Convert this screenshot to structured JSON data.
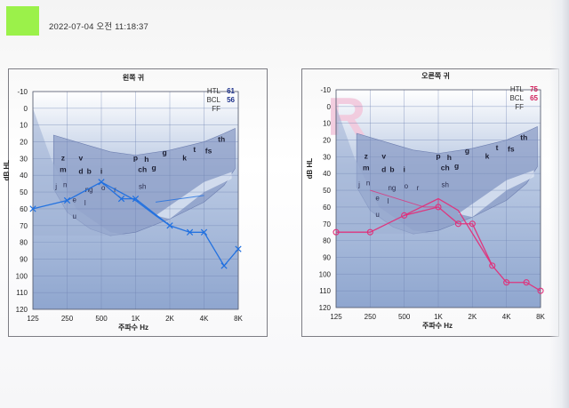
{
  "header": {
    "timestamp": "2022-07-04 오전 11:18:37"
  },
  "chart_data": [
    {
      "type": "line",
      "title": "왼쪽 귀",
      "xlabel": "주파수 Hz",
      "ylabel": "dB HL",
      "x_ticks": [
        "125",
        "250",
        "500",
        "1K",
        "2K",
        "4K",
        "8K"
      ],
      "y_ticks": [
        "-10",
        "0",
        "10",
        "20",
        "30",
        "40",
        "50",
        "60",
        "70",
        "80",
        "90",
        "100",
        "110",
        "120"
      ],
      "ylim": [
        -10,
        120
      ],
      "legend": {
        "htl_label": "HTL",
        "htl_value": "61",
        "bcl_label": "BCL",
        "bcl_value": "56",
        "ff_label": "FF"
      },
      "accent": "#1e6fe0",
      "watermark": "L",
      "series": [
        {
          "marker": "x",
          "points": [
            [
              125,
              60
            ],
            [
              250,
              55
            ],
            [
              500,
              44
            ],
            [
              750,
              54
            ],
            [
              1000,
              54
            ],
            [
              2000,
              70
            ],
            [
              3000,
              74
            ],
            [
              4000,
              74
            ],
            [
              6000,
              94
            ],
            [
              8000,
              84
            ]
          ]
        },
        {
          "marker": "line",
          "points": [
            [
              500,
              44
            ],
            [
              1000,
              55
            ],
            [
              1500,
              64
            ],
            [
              2000,
              70
            ]
          ]
        },
        {
          "marker": "bracket",
          "points": [
            [
              1500,
              56
            ],
            [
              4000,
              52
            ]
          ]
        }
      ],
      "speech_sounds": [
        {
          "t": "p",
          "f": 1000,
          "db": 31
        },
        {
          "t": "h",
          "f": 1250,
          "db": 32
        },
        {
          "t": "g",
          "f": 1800,
          "db": 28
        },
        {
          "t": "k",
          "f": 2700,
          "db": 31
        },
        {
          "t": "t",
          "f": 3300,
          "db": 26
        },
        {
          "t": "f",
          "f": 4200,
          "db": 27
        },
        {
          "t": "s",
          "f": 4500,
          "db": 27
        },
        {
          "t": "th",
          "f": 5700,
          "db": 20
        },
        {
          "t": "z",
          "f": 230,
          "db": 31
        },
        {
          "t": "v",
          "f": 330,
          "db": 31
        },
        {
          "t": "m",
          "f": 230,
          "db": 38
        },
        {
          "t": "d",
          "f": 330,
          "db": 39
        },
        {
          "t": "b",
          "f": 390,
          "db": 39
        },
        {
          "t": "i",
          "f": 500,
          "db": 39
        },
        {
          "t": "ch",
          "f": 1150,
          "db": 38
        },
        {
          "t": "g",
          "f": 1450,
          "db": 37
        },
        {
          "t": "j",
          "f": 200,
          "db": 48
        },
        {
          "t": "n",
          "f": 240,
          "db": 47
        },
        {
          "t": "ng",
          "f": 390,
          "db": 50
        },
        {
          "t": "o",
          "f": 520,
          "db": 49
        },
        {
          "t": "r",
          "f": 660,
          "db": 50
        },
        {
          "t": "sh",
          "f": 1150,
          "db": 48
        },
        {
          "t": "e",
          "f": 290,
          "db": 56
        },
        {
          "t": "l",
          "f": 360,
          "db": 58
        },
        {
          "t": "u",
          "f": 290,
          "db": 66
        }
      ]
    },
    {
      "type": "line",
      "title": "오른쪽 귀",
      "xlabel": "주파수 Hz",
      "ylabel": "dB HL",
      "x_ticks": [
        "125",
        "250",
        "500",
        "1K",
        "2K",
        "4K",
        "8K"
      ],
      "y_ticks": [
        "-10",
        "0",
        "10",
        "20",
        "30",
        "40",
        "50",
        "60",
        "70",
        "80",
        "90",
        "100",
        "110",
        "120"
      ],
      "ylim": [
        -10,
        120
      ],
      "legend": {
        "htl_label": "HTL",
        "htl_value": "75",
        "bcl_label": "BCL",
        "bcl_value": "65",
        "ff_label": "FF"
      },
      "accent": "#e0307a",
      "watermark": "R",
      "series": [
        {
          "marker": "o",
          "points": [
            [
              125,
              75
            ],
            [
              250,
              75
            ],
            [
              500,
              65
            ],
            [
              1000,
              60
            ],
            [
              1500,
              70
            ],
            [
              2000,
              70
            ],
            [
              3000,
              95
            ],
            [
              4000,
              105
            ],
            [
              6000,
              105
            ],
            [
              8000,
              110
            ]
          ]
        },
        {
          "marker": "line",
          "points": [
            [
              500,
              65
            ],
            [
              1000,
              55
            ],
            [
              1500,
              62
            ],
            [
              3000,
              95
            ]
          ]
        },
        {
          "marker": "bracket",
          "points": [
            [
              250,
              50
            ],
            [
              750,
              60
            ],
            [
              1000,
              60
            ],
            [
              1000,
              55
            ]
          ]
        }
      ],
      "speech_sounds": [
        {
          "t": "p",
          "f": 1000,
          "db": 31
        },
        {
          "t": "h",
          "f": 1250,
          "db": 32
        },
        {
          "t": "g",
          "f": 1800,
          "db": 28
        },
        {
          "t": "k",
          "f": 2700,
          "db": 31
        },
        {
          "t": "t",
          "f": 3300,
          "db": 26
        },
        {
          "t": "f",
          "f": 4200,
          "db": 27
        },
        {
          "t": "s",
          "f": 4500,
          "db": 27
        },
        {
          "t": "th",
          "f": 5700,
          "db": 20
        },
        {
          "t": "z",
          "f": 230,
          "db": 31
        },
        {
          "t": "v",
          "f": 330,
          "db": 31
        },
        {
          "t": "m",
          "f": 230,
          "db": 38
        },
        {
          "t": "d",
          "f": 330,
          "db": 39
        },
        {
          "t": "b",
          "f": 390,
          "db": 39
        },
        {
          "t": "i",
          "f": 500,
          "db": 39
        },
        {
          "t": "ch",
          "f": 1150,
          "db": 38
        },
        {
          "t": "g",
          "f": 1450,
          "db": 37
        },
        {
          "t": "j",
          "f": 200,
          "db": 48
        },
        {
          "t": "n",
          "f": 240,
          "db": 47
        },
        {
          "t": "ng",
          "f": 390,
          "db": 50
        },
        {
          "t": "o",
          "f": 520,
          "db": 49
        },
        {
          "t": "r",
          "f": 660,
          "db": 50
        },
        {
          "t": "sh",
          "f": 1150,
          "db": 48
        },
        {
          "t": "e",
          "f": 290,
          "db": 56
        },
        {
          "t": "l",
          "f": 360,
          "db": 58
        },
        {
          "t": "u",
          "f": 290,
          "db": 66
        }
      ]
    }
  ]
}
